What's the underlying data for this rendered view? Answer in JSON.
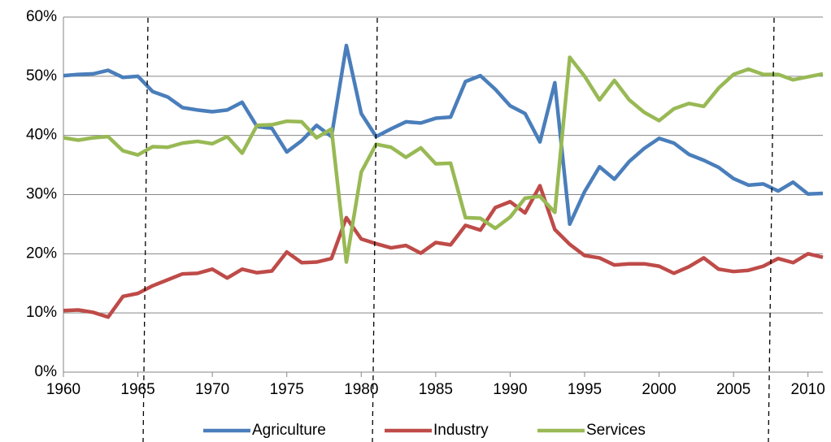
{
  "chart_data": {
    "type": "line",
    "x": [
      1960,
      1961,
      1962,
      1963,
      1964,
      1965,
      1966,
      1967,
      1968,
      1969,
      1970,
      1971,
      1972,
      1973,
      1974,
      1975,
      1976,
      1977,
      1978,
      1979,
      1980,
      1981,
      1982,
      1983,
      1984,
      1985,
      1986,
      1987,
      1988,
      1989,
      1990,
      1991,
      1992,
      1993,
      1994,
      1995,
      1996,
      1997,
      1998,
      1999,
      2000,
      2001,
      2002,
      2003,
      2004,
      2005,
      2006,
      2007,
      2008,
      2009,
      2010,
      2011
    ],
    "series": [
      {
        "name": "Agriculture",
        "color": "#4a7ebb",
        "values": [
          50.1,
          50.3,
          50.4,
          51.0,
          49.8,
          50.0,
          47.4,
          46.5,
          44.7,
          44.3,
          44.0,
          44.3,
          45.6,
          41.5,
          41.2,
          37.2,
          39.1,
          41.7,
          39.8,
          55.2,
          43.7,
          39.8,
          41.1,
          42.3,
          42.1,
          42.9,
          43.1,
          49.1,
          50.1,
          47.8,
          45.0,
          43.7,
          38.9,
          48.9,
          25.0,
          30.5,
          34.7,
          32.6,
          35.6,
          37.8,
          39.5,
          38.7,
          36.8,
          35.8,
          34.6,
          32.7,
          31.6,
          31.8,
          30.6,
          32.1,
          30.1,
          30.2
        ]
      },
      {
        "name": "Industry",
        "color": "#be4b48",
        "values": [
          10.4,
          10.5,
          10.1,
          9.3,
          12.8,
          13.3,
          14.6,
          15.6,
          16.6,
          16.7,
          17.4,
          15.9,
          17.4,
          16.8,
          17.1,
          20.3,
          18.5,
          18.6,
          19.2,
          26.1,
          22.5,
          21.7,
          21.0,
          21.4,
          20.1,
          21.9,
          21.5,
          24.8,
          24.0,
          27.8,
          28.8,
          26.9,
          31.5,
          24.1,
          21.6,
          19.7,
          19.3,
          18.1,
          18.3,
          18.3,
          17.9,
          16.7,
          17.8,
          19.3,
          17.4,
          17.0,
          17.2,
          17.9,
          19.2,
          18.5,
          20.0,
          19.4
        ]
      },
      {
        "name": "Services",
        "color": "#98b954",
        "values": [
          39.6,
          39.2,
          39.6,
          39.8,
          37.4,
          36.7,
          38.1,
          38.0,
          38.7,
          39.0,
          38.6,
          39.8,
          37.0,
          41.7,
          41.8,
          42.4,
          42.3,
          39.6,
          41.1,
          18.6,
          33.8,
          38.5,
          38.0,
          36.3,
          37.9,
          35.2,
          35.3,
          26.1,
          26.0,
          24.3,
          26.2,
          29.4,
          29.7,
          27.0,
          53.2,
          50.0,
          46.0,
          49.3,
          46.0,
          43.9,
          42.5,
          44.5,
          45.4,
          44.9,
          48.0,
          50.3,
          51.2,
          50.3,
          50.3,
          49.4,
          49.9,
          50.4
        ]
      }
    ],
    "xlim": [
      1960,
      2011
    ],
    "xticks": [
      1960,
      1965,
      1970,
      1975,
      1980,
      1985,
      1990,
      1995,
      2000,
      2005,
      2010
    ],
    "ylim": [
      0,
      60
    ],
    "yticks": [
      {
        "value": 0,
        "label": "0%"
      },
      {
        "value": 10,
        "label": "10%"
      },
      {
        "value": 20,
        "label": "20%"
      },
      {
        "value": 30,
        "label": "30%"
      },
      {
        "value": 40,
        "label": "40%"
      },
      {
        "value": 50,
        "label": "50%"
      },
      {
        "value": 60,
        "label": "60%"
      }
    ],
    "grid": true,
    "legend": "bottom"
  }
}
